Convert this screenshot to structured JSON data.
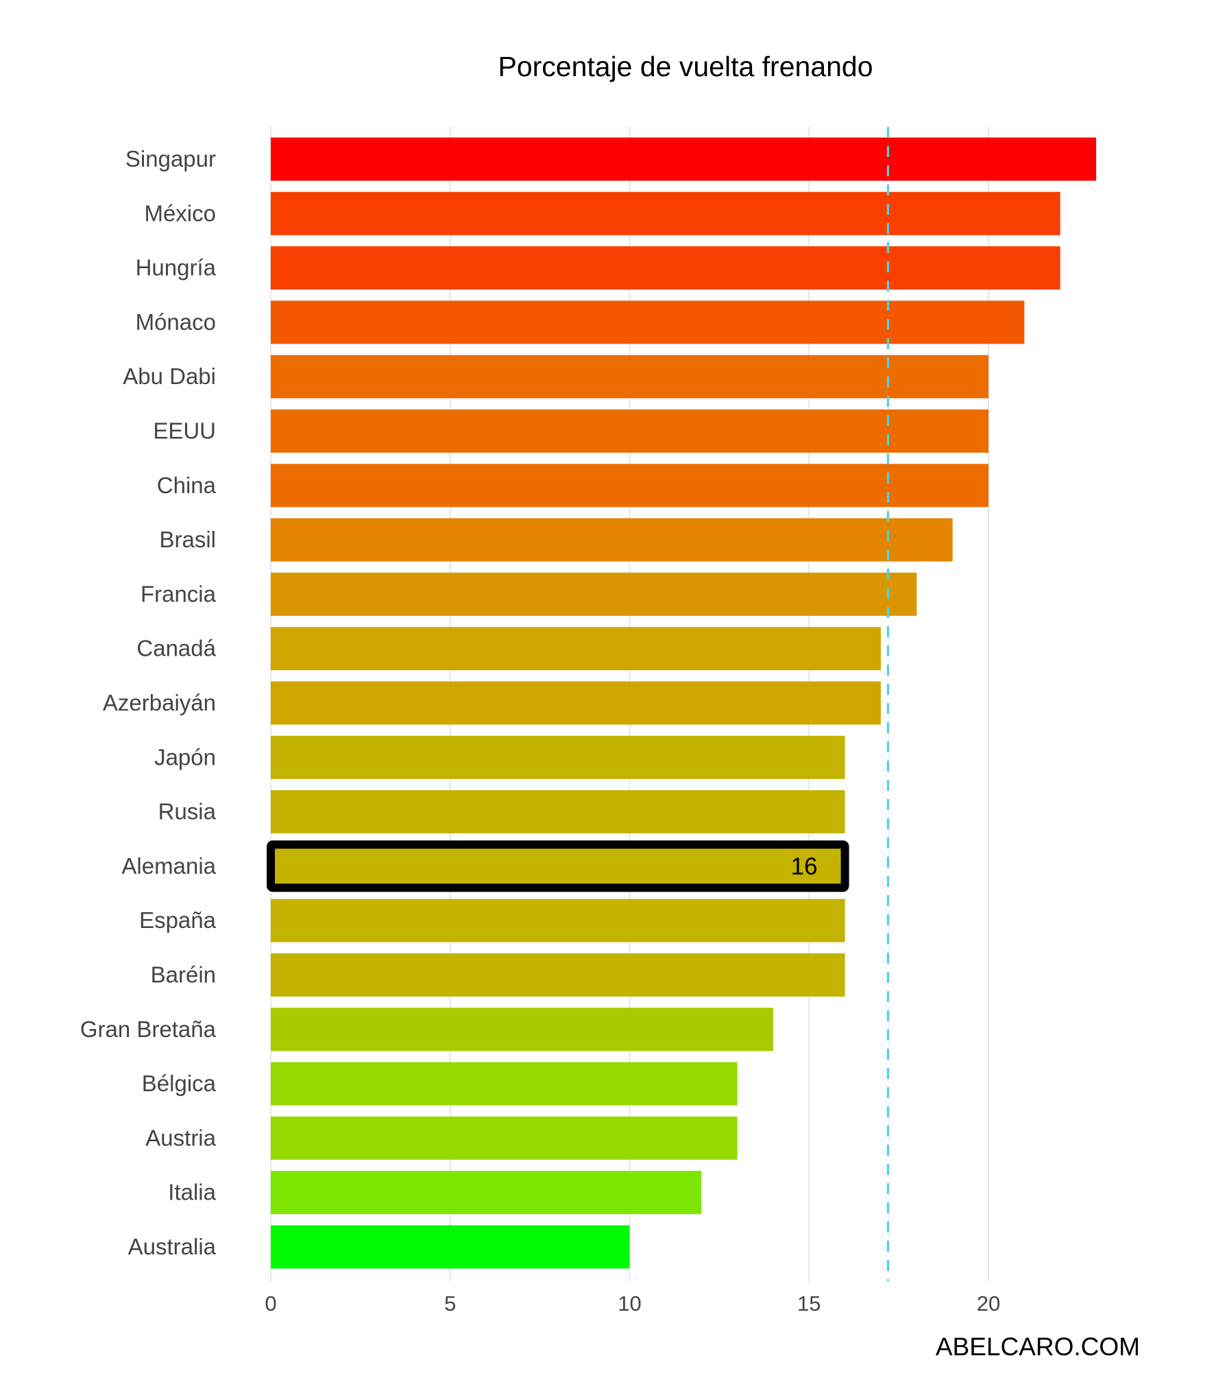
{
  "chart_data": {
    "type": "bar",
    "orientation": "horizontal",
    "title": "Porcentaje de vuelta frenando",
    "xlabel": "",
    "ylabel": "",
    "xlim": [
      0,
      23.5
    ],
    "x_ticks": [
      0,
      5,
      10,
      15,
      20
    ],
    "grid": true,
    "reference_line": {
      "value": 17.2,
      "color": "#4fd3dc",
      "style": "dashed"
    },
    "categories": [
      "Singapur",
      "México",
      "Hungría",
      "Mónaco",
      "Abu Dabi",
      "EEUU",
      "China",
      "Brasil",
      "Francia",
      "Canadá",
      "Azerbaiyán",
      "Japón",
      "Rusia",
      "Alemania",
      "España",
      "Baréin",
      "Gran Bretaña",
      "Bélgica",
      "Austria",
      "Italia",
      "Australia"
    ],
    "values": [
      23,
      22,
      22,
      21,
      20,
      20,
      20,
      19,
      18,
      17,
      17,
      16,
      16,
      16,
      16,
      16,
      14,
      13,
      13,
      12,
      10
    ],
    "colors": [
      "#ff0000",
      "#f93f00",
      "#f93f00",
      "#f35800",
      "#ec6c00",
      "#ec6c00",
      "#ec6c00",
      "#e38500",
      "#da9600",
      "#cfa600",
      "#cfa600",
      "#c4b300",
      "#c4b300",
      "#c4b300",
      "#c4b300",
      "#c4b300",
      "#a8cb00",
      "#95d900",
      "#95d900",
      "#7ce600",
      "#00fa00"
    ],
    "highlight": {
      "category": "Alemania",
      "label": "16"
    }
  },
  "credit": "ABELCARO.COM"
}
